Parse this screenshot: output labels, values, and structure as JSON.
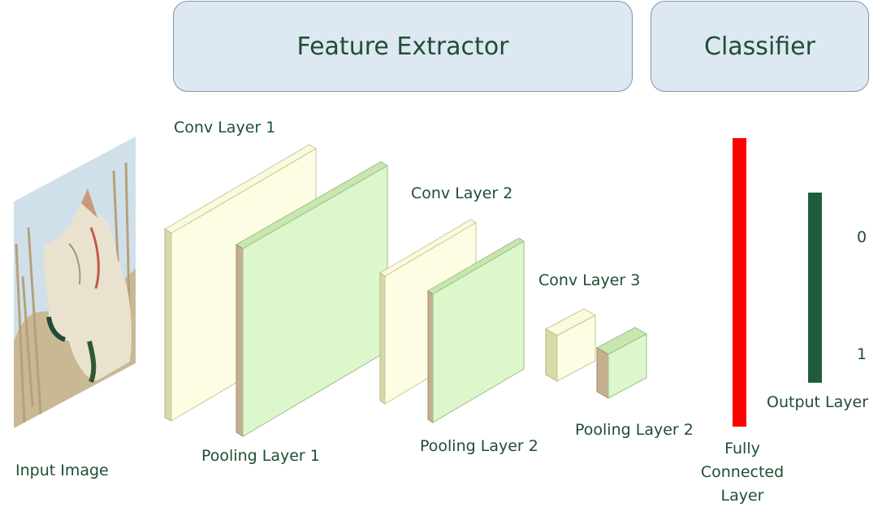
{
  "header": {
    "feature_extractor": "Feature Extractor",
    "classifier": "Classifier"
  },
  "labels": {
    "input_image": "Input Image",
    "conv_layer_1": "Conv Layer 1",
    "pooling_layer_1": "Pooling Layer 1",
    "conv_layer_2": "Conv Layer 2",
    "pooling_layer_2": "Pooling Layer 2",
    "conv_layer_3": "Conv Layer 3",
    "pooling_layer_3": "Pooling Layer 2",
    "fully_connected": "Fully\nConnected\nLayer",
    "output_layer": "Output Layer",
    "output_0": "0",
    "output_1": "1"
  },
  "colors": {
    "header_fill": "#dde8f3",
    "conv_face": "#fdfde3",
    "pool_face": "#dcf7cb",
    "fully_connected": "#ff0000",
    "output_layer": "#1f5c3f",
    "text": "#1f4e33"
  }
}
